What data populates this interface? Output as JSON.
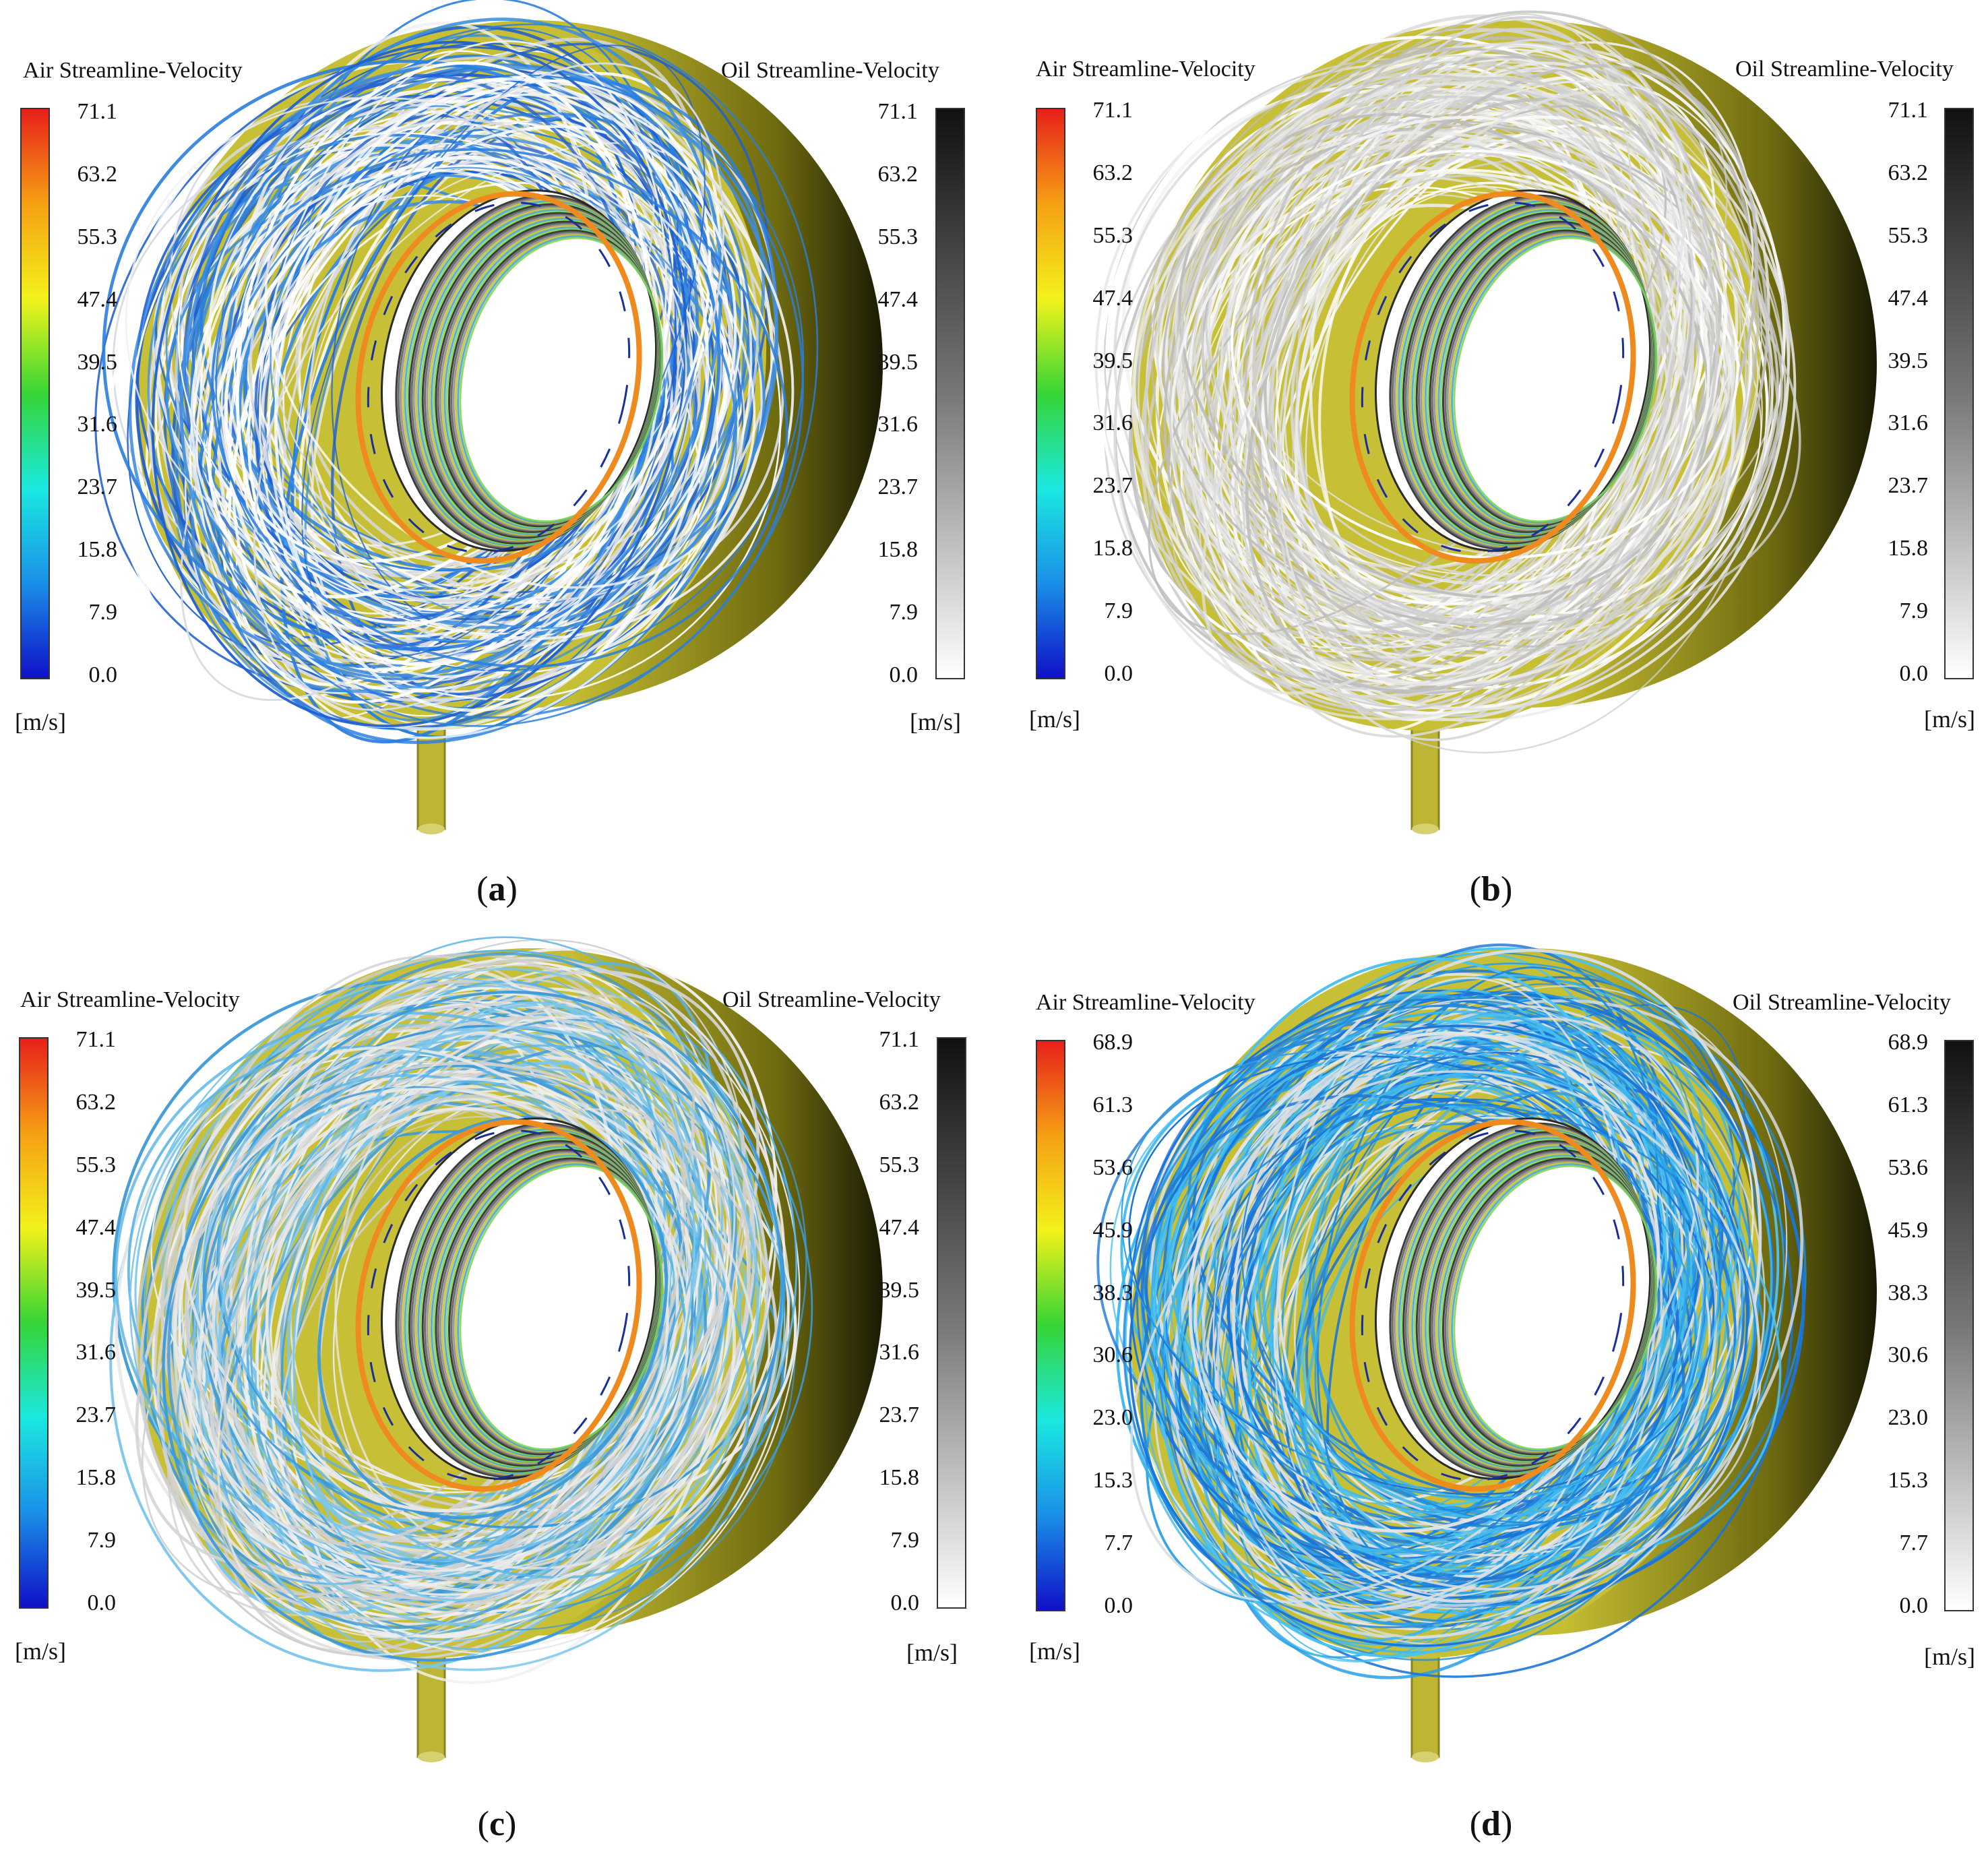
{
  "panels": [
    {
      "id": "a",
      "label": "a",
      "air_title": "Air Streamline-Velocity",
      "oil_title": "Oil Streamline-Velocity",
      "air_ticks": [
        "71.1",
        "63.2",
        "55.3",
        "47.4",
        "39.5",
        "31.6",
        "23.7",
        "15.8",
        "7.9",
        "0.0"
      ],
      "oil_ticks": [
        "71.1",
        "63.2",
        "55.3",
        "47.4",
        "39.5",
        "31.6",
        "23.7",
        "15.8",
        "7.9",
        "0.0"
      ],
      "unit": "[m/s]",
      "palette": [
        "#1f5fd0",
        "#2a7ee0",
        "#ffffff",
        "#f0f0f0",
        "#d8dbe2",
        "#3e8fe0",
        "#ffffff"
      ]
    },
    {
      "id": "b",
      "label": "b",
      "air_title": "Air Streamline-Velocity",
      "oil_title": "Oil Streamline-Velocity",
      "air_ticks": [
        "71.1",
        "63.2",
        "55.3",
        "47.4",
        "39.5",
        "31.6",
        "23.7",
        "15.8",
        "7.9",
        "0.0"
      ],
      "oil_ticks": [
        "71.1",
        "63.2",
        "55.3",
        "47.4",
        "39.5",
        "31.6",
        "23.7",
        "15.8",
        "7.9",
        "0.0"
      ],
      "unit": "[m/s]",
      "palette": [
        "#d9d9d9",
        "#ececec",
        "#cfcfcf",
        "#ffffff",
        "#e3e3e3",
        "#bdbdbd",
        "#f5f5f5"
      ]
    },
    {
      "id": "c",
      "label": "c",
      "air_title": "Air Streamline-Velocity",
      "oil_title": "Oil Streamline-Velocity",
      "air_ticks": [
        "71.1",
        "63.2",
        "55.3",
        "47.4",
        "39.5",
        "31.6",
        "23.7",
        "15.8",
        "7.9",
        "0.0"
      ],
      "oil_ticks": [
        "71.1",
        "63.2",
        "55.3",
        "47.4",
        "39.5",
        "31.6",
        "23.7",
        "15.8",
        "7.9",
        "0.0"
      ],
      "unit": "[m/s]",
      "palette": [
        "#d5d5d5",
        "#5ab4e6",
        "#e8e8e8",
        "#3d9ad8",
        "#cfcfcf",
        "#7cc6ec",
        "#f0f0f0"
      ]
    },
    {
      "id": "d",
      "label": "d",
      "air_title": "Air Streamline-Velocity",
      "oil_title": "Oil Streamline-Velocity",
      "air_ticks": [
        "68.9",
        "61.3",
        "53.6",
        "45.9",
        "38.3",
        "30.6",
        "23.0",
        "15.3",
        "7.7",
        "0.0"
      ],
      "oil_ticks": [
        "68.9",
        "61.3",
        "53.6",
        "45.9",
        "38.3",
        "30.6",
        "23.0",
        "15.3",
        "7.7",
        "0.0"
      ],
      "unit": "[m/s]",
      "palette": [
        "#2aa0e8",
        "#1f8be0",
        "#3fb8ee",
        "#d8dde3",
        "#1a74d8",
        "#4cc2f0",
        "#e6e6e6"
      ]
    }
  ]
}
